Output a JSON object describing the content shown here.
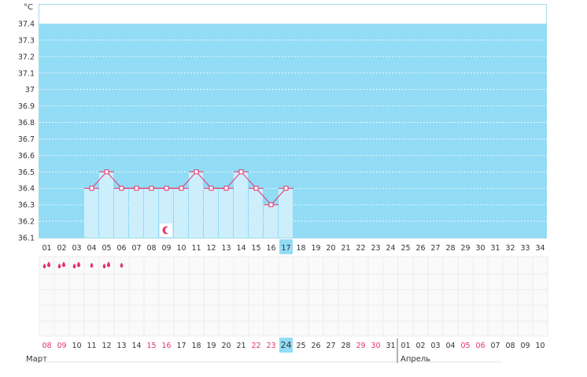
{
  "chart_data": {
    "type": "line",
    "unit_label": "°C",
    "ylim": [
      36.1,
      37.4
    ],
    "y_ticks": [
      "36.1",
      "36.2",
      "36.3",
      "36.4",
      "36.5",
      "36.6",
      "36.7",
      "36.8",
      "36.9",
      "37",
      "37.1",
      "37.2",
      "37.3",
      "37.4"
    ],
    "cycle_days": [
      "01",
      "02",
      "03",
      "04",
      "05",
      "06",
      "07",
      "08",
      "09",
      "10",
      "11",
      "12",
      "13",
      "14",
      "15",
      "16",
      "17",
      "18",
      "19",
      "20",
      "21",
      "22",
      "23",
      "24",
      "25",
      "26",
      "27",
      "28",
      "29",
      "30",
      "31",
      "32",
      "33",
      "34"
    ],
    "current_day_index": 16,
    "series": [
      {
        "x": [
          4,
          5,
          6,
          7,
          8,
          9,
          10,
          11,
          12,
          13,
          14,
          15,
          16,
          17
        ],
        "values": [
          36.4,
          36.5,
          36.4,
          36.4,
          36.4,
          36.4,
          36.4,
          36.5,
          36.4,
          36.4,
          36.5,
          36.4,
          36.3,
          36.4
        ]
      }
    ],
    "ovulation_day_index": 8,
    "period_marks": {
      "day_indices": [
        0,
        1,
        2,
        3,
        4,
        5
      ],
      "levels": [
        2,
        2,
        2,
        1,
        2,
        1
      ]
    },
    "calendar_dates": [
      "08",
      "09",
      "10",
      "11",
      "12",
      "13",
      "14",
      "15",
      "16",
      "17",
      "18",
      "19",
      "20",
      "21",
      "22",
      "23",
      "24",
      "25",
      "26",
      "27",
      "28",
      "29",
      "30",
      "31",
      "01",
      "02",
      "03",
      "04",
      "05",
      "06",
      "07",
      "08",
      "09",
      "10"
    ],
    "calendar_highlight_indices": [
      0,
      1,
      7,
      8,
      14,
      15,
      21,
      22,
      28,
      29
    ],
    "today_index": 16,
    "months": [
      {
        "label": "Март",
        "start_index": 0
      },
      {
        "label": "Апрель",
        "start_index": 24
      }
    ],
    "grid": true
  },
  "colors": {
    "background_fill": "#92dcf5",
    "bar_fill": "#cdeefb",
    "line": "#e5326c",
    "highlight_date": "#e5326c",
    "current_day": "#92dcf5"
  }
}
